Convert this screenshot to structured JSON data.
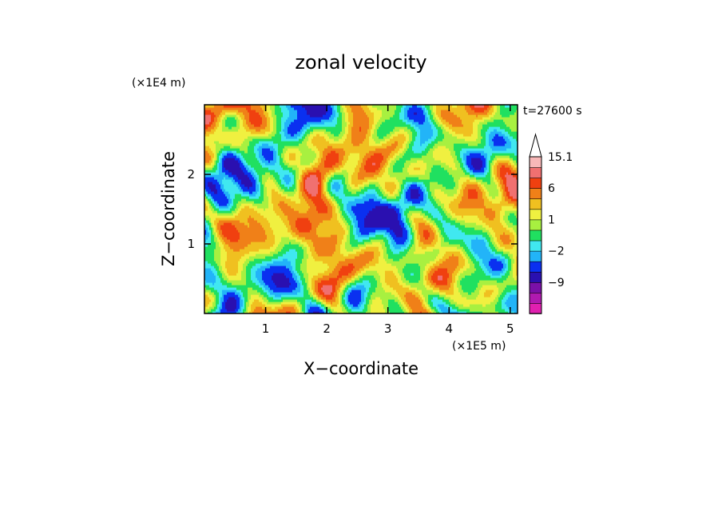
{
  "chart_data": {
    "type": "heatmap",
    "title": "zonal velocity",
    "xlabel": "X−coordinate",
    "ylabel": "Z−coordinate",
    "x_unit": "(×1E5 m)",
    "y_unit": "(×1E4 m)",
    "time_label": "t=27600 s",
    "xlim": [
      0,
      5.12
    ],
    "ylim": [
      0,
      3.0
    ],
    "x_ticks": [
      1,
      2,
      3,
      4,
      5
    ],
    "y_ticks": [
      1,
      2
    ],
    "x_tick_labels": [
      "1",
      "2",
      "3",
      "4",
      "5"
    ],
    "y_tick_labels": [
      "1",
      "2"
    ],
    "colorbar": {
      "levels": [
        -15,
        -12,
        -9,
        -6,
        -3,
        -2,
        -1,
        0,
        1,
        2,
        3,
        6,
        9,
        12,
        15.1
      ],
      "colors": [
        "#e020b0",
        "#b01ab0",
        "#7a10a8",
        "#2a10b0",
        "#0a30f0",
        "#22b4f8",
        "#40e8f0",
        "#20e060",
        "#a8f040",
        "#f0f040",
        "#f0c020",
        "#f08018",
        "#f04010",
        "#f07070",
        "#f8b8b8"
      ],
      "tick_labels": [
        "15.1",
        "6",
        "1",
        "−2",
        "−9"
      ],
      "tick_values": [
        15.1,
        6,
        1,
        -2,
        -9
      ],
      "extend": "max"
    }
  }
}
